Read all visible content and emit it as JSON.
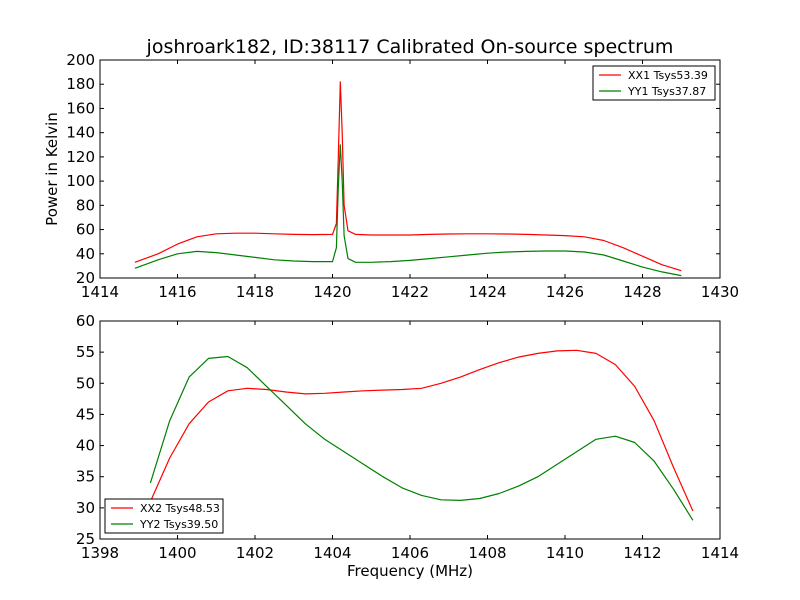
{
  "title": "joshroark182, ID:38117 Calibrated On-source spectrum",
  "colors": {
    "red": "#ff0000",
    "green": "#008000"
  },
  "chart_data": [
    {
      "type": "line",
      "xlabel": "",
      "ylabel": "Power in Kelvin",
      "xlim": [
        1414,
        1430
      ],
      "ylim": [
        20,
        200
      ],
      "xticks": [
        1414,
        1416,
        1418,
        1420,
        1422,
        1424,
        1426,
        1428,
        1430
      ],
      "yticks": [
        20,
        40,
        60,
        80,
        100,
        120,
        140,
        160,
        180,
        200
      ],
      "legend_position": "top-right",
      "series": [
        {
          "name": "XX1 Tsys53.39",
          "color": "#ff0000",
          "x": [
            1414.9,
            1415.5,
            1416.0,
            1416.5,
            1417.0,
            1417.5,
            1418.0,
            1418.5,
            1419.0,
            1419.5,
            1420.0,
            1420.1,
            1420.15,
            1420.2,
            1420.25,
            1420.3,
            1420.4,
            1420.6,
            1421.0,
            1421.5,
            1422.0,
            1422.5,
            1423.0,
            1423.5,
            1424.0,
            1424.5,
            1425.0,
            1425.5,
            1426.0,
            1426.5,
            1427.0,
            1427.5,
            1428.0,
            1428.5,
            1429.0
          ],
          "y": [
            33,
            40,
            48,
            54,
            56.5,
            57,
            57,
            56.5,
            56,
            55.8,
            56,
            65,
            120,
            182,
            140,
            80,
            59,
            56,
            55.5,
            55.5,
            55.5,
            56,
            56.3,
            56.5,
            56.5,
            56.3,
            56,
            55.5,
            55,
            54,
            51,
            45,
            38,
            31,
            26
          ]
        },
        {
          "name": "YY1 Tsys37.87",
          "color": "#008000",
          "x": [
            1414.9,
            1415.5,
            1416.0,
            1416.5,
            1417.0,
            1417.5,
            1418.0,
            1418.5,
            1419.0,
            1419.5,
            1420.0,
            1420.1,
            1420.15,
            1420.2,
            1420.25,
            1420.3,
            1420.4,
            1420.6,
            1421.0,
            1421.5,
            1422.0,
            1422.5,
            1423.0,
            1423.5,
            1424.0,
            1424.5,
            1425.0,
            1425.5,
            1426.0,
            1426.5,
            1427.0,
            1427.5,
            1428.0,
            1428.5,
            1429.0
          ],
          "y": [
            28,
            35,
            40,
            42,
            41,
            39,
            37,
            35,
            34,
            33.5,
            33.5,
            45,
            95,
            130,
            100,
            55,
            36,
            33,
            33,
            33.5,
            34.5,
            36,
            37.5,
            39,
            40.5,
            41.5,
            42,
            42.3,
            42.3,
            41.5,
            39,
            34,
            29,
            25,
            22
          ]
        }
      ]
    },
    {
      "type": "line",
      "xlabel": "Frequency (MHz)",
      "ylabel": "",
      "xlim": [
        1398,
        1414
      ],
      "ylim": [
        25,
        60
      ],
      "xticks": [
        1398,
        1400,
        1402,
        1404,
        1406,
        1408,
        1410,
        1412,
        1414
      ],
      "yticks": [
        25,
        30,
        35,
        40,
        45,
        50,
        55,
        60
      ],
      "legend_position": "bottom-left",
      "series": [
        {
          "name": "XX2 Tsys48.53",
          "color": "#ff0000",
          "x": [
            1399.3,
            1399.8,
            1400.3,
            1400.8,
            1401.3,
            1401.8,
            1402.3,
            1402.8,
            1403.3,
            1403.8,
            1404.3,
            1404.8,
            1405.3,
            1405.8,
            1406.3,
            1406.8,
            1407.3,
            1407.8,
            1408.3,
            1408.8,
            1409.3,
            1409.8,
            1410.3,
            1410.8,
            1411.3,
            1411.8,
            1412.3,
            1412.8,
            1413.3
          ],
          "y": [
            31,
            38,
            43.5,
            47,
            48.8,
            49.2,
            49,
            48.6,
            48.3,
            48.4,
            48.6,
            48.8,
            48.9,
            49,
            49.2,
            50,
            51,
            52.2,
            53.3,
            54.2,
            54.8,
            55.2,
            55.3,
            54.8,
            53,
            49.5,
            44,
            36.5,
            29.5
          ]
        },
        {
          "name": "YY2 Tsys39.50",
          "color": "#008000",
          "x": [
            1399.3,
            1399.8,
            1400.3,
            1400.8,
            1401.3,
            1401.8,
            1402.3,
            1402.8,
            1403.3,
            1403.8,
            1404.3,
            1404.8,
            1405.3,
            1405.8,
            1406.3,
            1406.8,
            1407.3,
            1407.8,
            1408.3,
            1408.8,
            1409.3,
            1409.8,
            1410.3,
            1410.8,
            1411.3,
            1411.8,
            1412.3,
            1412.8,
            1413.3
          ],
          "y": [
            34,
            44,
            51,
            54,
            54.3,
            52.5,
            49.5,
            46.5,
            43.5,
            41,
            39,
            37,
            35,
            33.2,
            32,
            31.3,
            31.2,
            31.5,
            32.3,
            33.5,
            35,
            37,
            39,
            41,
            41.5,
            40.5,
            37.5,
            33,
            28
          ]
        }
      ]
    }
  ]
}
